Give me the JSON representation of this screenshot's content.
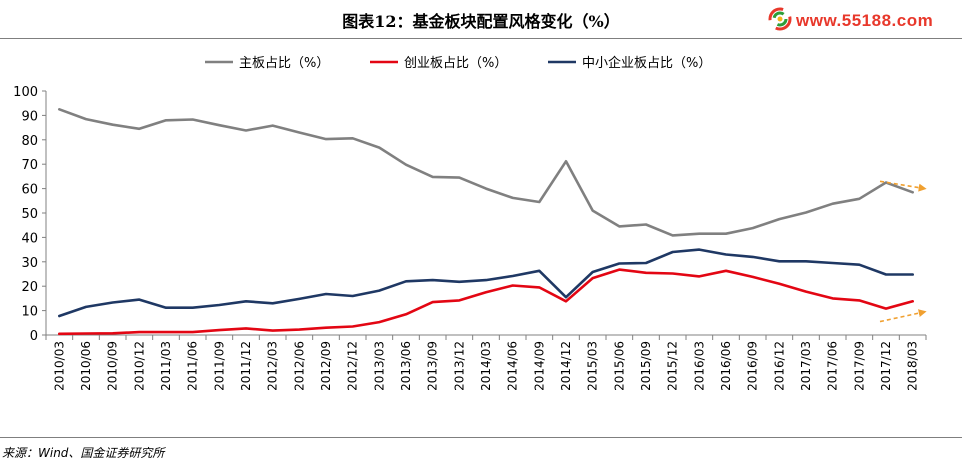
{
  "title": "图表12：基金板块配置风格变化（%）",
  "logo": {
    "text": "www.55188.com",
    "icon": "swirl-logo-icon"
  },
  "source": "来源：Wind、国金证券研究所",
  "chart_data": {
    "type": "line",
    "title": "图表12：基金板块配置风格变化（%）",
    "xlabel": "",
    "ylabel": "",
    "ylim": [
      0,
      100
    ],
    "yticks": [
      0,
      10,
      20,
      30,
      40,
      50,
      60,
      70,
      80,
      90,
      100
    ],
    "grid": false,
    "legend_position": "top",
    "x": [
      "2010/03",
      "2010/06",
      "2010/09",
      "2010/12",
      "2011/03",
      "2011/06",
      "2011/09",
      "2011/12",
      "2012/03",
      "2012/06",
      "2012/09",
      "2012/12",
      "2013/03",
      "2013/06",
      "2013/09",
      "2013/12",
      "2014/03",
      "2014/06",
      "2014/09",
      "2014/12",
      "2015/03",
      "2015/06",
      "2015/09",
      "2015/12",
      "2016/03",
      "2016/06",
      "2016/09",
      "2016/12",
      "2017/03",
      "2017/06",
      "2017/09",
      "2017/12",
      "2018/03"
    ],
    "series": [
      {
        "name": "主板占比（%）",
        "color": "#808080",
        "values": [
          92.5,
          88.5,
          86.2,
          84.5,
          88,
          88.3,
          86,
          83.8,
          85.8,
          83,
          80.3,
          80.6,
          76.8,
          69.8,
          64.8,
          64.5,
          60,
          56.2,
          54.5,
          71.2,
          51,
          44.5,
          45.3,
          40.8,
          41.5,
          41.5,
          43.8,
          47.5,
          50.2,
          53.8,
          55.8,
          62.5,
          58.5
        ]
      },
      {
        "name": "创业板占比（%）",
        "color": "#e30613",
        "values": [
          0.5,
          0.6,
          0.7,
          1.2,
          1.2,
          1.2,
          2,
          2.7,
          1.8,
          2.2,
          3,
          3.5,
          5.3,
          8.5,
          13.5,
          14.2,
          17.5,
          20.3,
          19.5,
          13.8,
          23.3,
          26.8,
          25.5,
          25.2,
          24,
          26.3,
          23.8,
          21,
          17.8,
          15,
          14.2,
          10.8,
          13.8
        ]
      },
      {
        "name": "中小企业板占比（%）",
        "color": "#1f3864",
        "values": [
          7.8,
          11.5,
          13.3,
          14.5,
          11.2,
          11.2,
          12.3,
          13.8,
          13,
          14.8,
          16.8,
          16,
          18.2,
          22,
          22.5,
          21.8,
          22.5,
          24.2,
          26.3,
          15.5,
          25.8,
          29.3,
          29.5,
          34,
          35,
          33,
          32,
          30.2,
          30.2,
          29.5,
          28.8,
          24.8,
          24.8
        ]
      }
    ],
    "annotations": [
      {
        "type": "arrow",
        "color": "#f0a030",
        "from": [
          "2017/12",
          63
        ],
        "to": [
          "2018/03",
          60
        ],
        "note": ""
      },
      {
        "type": "arrow",
        "color": "#f0a030",
        "from": [
          "2017/12",
          5.5
        ],
        "to": [
          "2018/03",
          9.5
        ],
        "note": ""
      }
    ]
  }
}
